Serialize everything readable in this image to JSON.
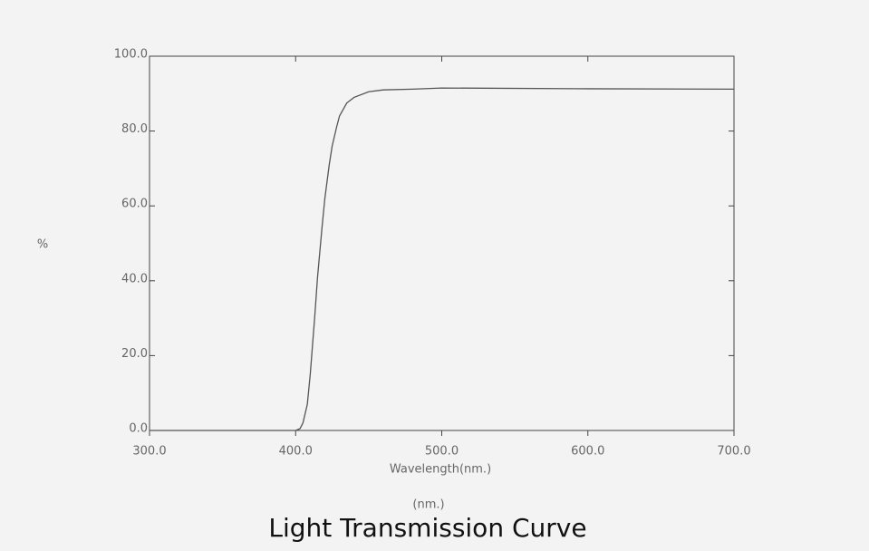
{
  "chart_data": {
    "type": "line",
    "title": "Light Transmission Curve",
    "x_label": "Wavelength(nm.)",
    "y_label": "%",
    "annotation": "(nm.)",
    "x": [
      300,
      400,
      403,
      405,
      408,
      410,
      413,
      415,
      418,
      420,
      423,
      425,
      428,
      430,
      435,
      440,
      450,
      460,
      480,
      500,
      600,
      700
    ],
    "series": [
      {
        "color": "#555555",
        "values": [
          0,
          0,
          0.5,
          2,
          7,
          15,
          30,
          41,
          54,
          62,
          71,
          76,
          81,
          84,
          87.5,
          89,
          90.5,
          91,
          91.2,
          91.5,
          91.3,
          91.2
        ]
      }
    ],
    "xlim": [
      300,
      700
    ],
    "ylim": [
      0,
      100
    ],
    "xticks": [
      {
        "value": 300,
        "label": "300.0"
      },
      {
        "value": 400,
        "label": "400.0"
      },
      {
        "value": 500,
        "label": "500.0"
      },
      {
        "value": 600,
        "label": "600.0"
      },
      {
        "value": 700,
        "label": "700.0"
      }
    ],
    "yticks": [
      {
        "value": 0,
        "label": "0.0"
      },
      {
        "value": 20,
        "label": "20.0"
      },
      {
        "value": 40,
        "label": "40.0"
      },
      {
        "value": 60,
        "label": "60.0"
      },
      {
        "value": 80,
        "label": "80.0"
      },
      {
        "value": 100,
        "label": "100.0"
      }
    ],
    "grid": false
  }
}
